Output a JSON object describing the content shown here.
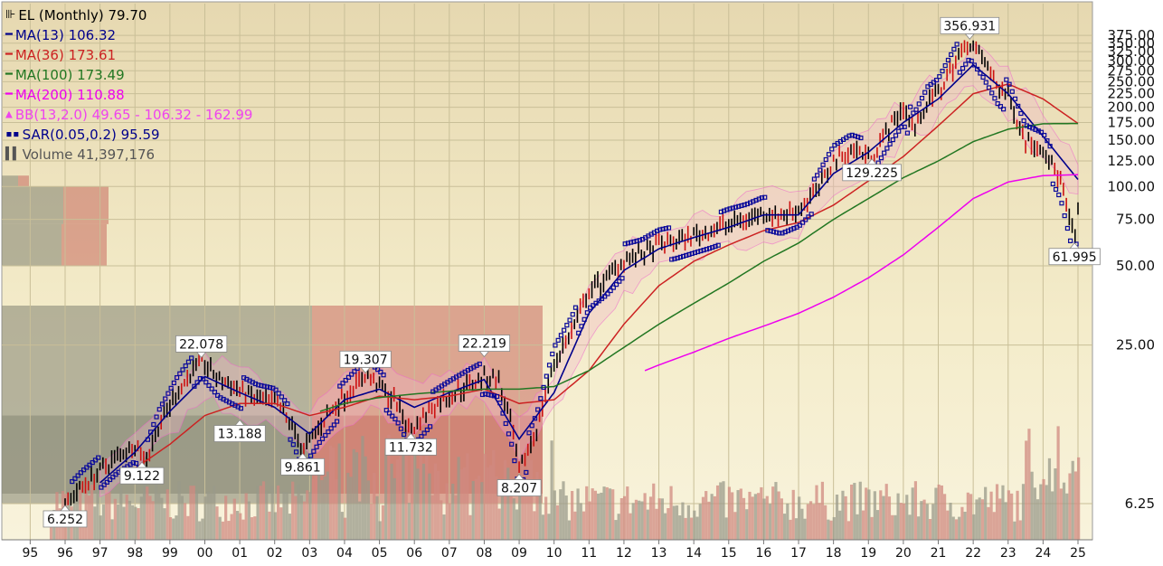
{
  "chart_data": {
    "type": "line",
    "title": "EL (Monthly) 79.70",
    "symbol": "EL",
    "period": "Monthly",
    "last_close": 79.7,
    "y_scale": "log",
    "ylim": [
      5.5,
      380
    ],
    "y_ticks": [
      375,
      350,
      325,
      300,
      275,
      250,
      225,
      200,
      175,
      150,
      125,
      100,
      75,
      50,
      25,
      6.25
    ],
    "y_tick_labels": [
      "375.00",
      "350.00",
      "325.00",
      "300.00",
      "275.00",
      "250.00",
      "225.00",
      "200.00",
      "175.00",
      "150.00",
      "125.00",
      "100.00",
      "75.00",
      "50.00",
      "25.00",
      "6.25"
    ],
    "x_labels": [
      "95",
      "96",
      "97",
      "98",
      "99",
      "00",
      "01",
      "02",
      "03",
      "04",
      "05",
      "06",
      "07",
      "08",
      "09",
      "10",
      "11",
      "12",
      "13",
      "14",
      "15",
      "16",
      "17",
      "18",
      "19",
      "20",
      "21",
      "22",
      "23",
      "24",
      "25"
    ],
    "x_years": [
      1995,
      1996,
      1997,
      1998,
      1999,
      2000,
      2001,
      2002,
      2003,
      2004,
      2005,
      2006,
      2007,
      2008,
      2009,
      2010,
      2011,
      2012,
      2013,
      2014,
      2015,
      2016,
      2017,
      2018,
      2019,
      2020,
      2021,
      2022,
      2023,
      2024,
      2025
    ],
    "grid": true,
    "legend_position": "top-left",
    "legend": [
      {
        "label": "EL (Monthly) 79.70",
        "color": "#000000",
        "icon": "candlestick-icon"
      },
      {
        "label": "MA(13) 106.32",
        "color": "#00008b",
        "icon": "line-icon"
      },
      {
        "label": "MA(36) 173.61",
        "color": "#cc2222",
        "icon": "line-icon"
      },
      {
        "label": "MA(100) 173.49",
        "color": "#227722",
        "icon": "line-icon"
      },
      {
        "label": "MA(200) 110.88",
        "color": "#ee00ee",
        "icon": "line-icon"
      },
      {
        "label": "BB(13,2.0) 49.65 - 106.32 - 162.99",
        "color": "#ee44ee",
        "icon": "bollinger-icon"
      },
      {
        "label": "SAR(0.05,0.2) 95.59",
        "color": "#00008b",
        "icon": "dots-icon"
      },
      {
        "label": "Volume 41,397,176",
        "color": "#555555",
        "icon": "volume-icon"
      }
    ],
    "annotations": [
      {
        "text": "6.252",
        "x": 1996.0,
        "y": 6.252,
        "pos": "below"
      },
      {
        "text": "9.122",
        "x": 1998.2,
        "y": 9.122,
        "pos": "below"
      },
      {
        "text": "22.078",
        "x": 1999.9,
        "y": 22.078,
        "pos": "above"
      },
      {
        "text": "13.188",
        "x": 2001.0,
        "y": 13.188,
        "pos": "below"
      },
      {
        "text": "9.861",
        "x": 2002.8,
        "y": 9.861,
        "pos": "below"
      },
      {
        "text": "19.307",
        "x": 2004.6,
        "y": 19.307,
        "pos": "above"
      },
      {
        "text": "11.732",
        "x": 2005.9,
        "y": 11.732,
        "pos": "below"
      },
      {
        "text": "22.219",
        "x": 2008.0,
        "y": 22.219,
        "pos": "above"
      },
      {
        "text": "8.207",
        "x": 2009.0,
        "y": 8.207,
        "pos": "below"
      },
      {
        "text": "129.225",
        "x": 2019.1,
        "y": 129.225,
        "pos": "below"
      },
      {
        "text": "356.931",
        "x": 2021.9,
        "y": 356.931,
        "pos": "above"
      },
      {
        "text": "61.995",
        "x": 2024.9,
        "y": 61.995,
        "pos": "below"
      }
    ],
    "series": [
      {
        "name": "EL (Monthly) 79.70",
        "kind": "price",
        "color": "#000000",
        "x": [
          1996.0,
          1996.5,
          1997.0,
          1997.5,
          1998.0,
          1998.3,
          1998.7,
          1999.2,
          1999.9,
          2000.4,
          2001.0,
          2001.5,
          2002.0,
          2002.5,
          2002.8,
          2003.3,
          2003.8,
          2004.3,
          2004.6,
          2005.0,
          2005.5,
          2005.9,
          2006.5,
          2007.0,
          2007.5,
          2008.0,
          2008.4,
          2008.8,
          2009.0,
          2009.5,
          2010.0,
          2010.5,
          2011.0,
          2011.5,
          2012.0,
          2012.5,
          2013.0,
          2013.5,
          2014.0,
          2014.5,
          2015.0,
          2015.5,
          2016.0,
          2016.5,
          2017.0,
          2017.5,
          2018.0,
          2018.5,
          2019.1,
          2019.5,
          2020.0,
          2020.3,
          2020.7,
          2021.0,
          2021.5,
          2021.9,
          2022.3,
          2022.7,
          2023.0,
          2023.5,
          2024.0,
          2024.5,
          2024.9,
          2025.0
        ],
        "y": [
          6.25,
          7.3,
          8.3,
          9.5,
          10.5,
          9.1,
          12.5,
          16.5,
          22.0,
          18.5,
          16.8,
          15.5,
          15.0,
          12.5,
          9.9,
          12.5,
          15.0,
          17.5,
          19.3,
          17.5,
          15.0,
          11.8,
          14.5,
          16.0,
          17.5,
          19.0,
          18.5,
          12.0,
          8.2,
          12.0,
          21.5,
          28.0,
          40.0,
          45.0,
          53.0,
          55.0,
          60.0,
          62.0,
          65.0,
          68.0,
          72.0,
          75.0,
          80.0,
          77.0,
          82.0,
          95.0,
          125.0,
          138.0,
          130.0,
          160.0,
          200.0,
          165.0,
          210.0,
          225.0,
          300.0,
          356.0,
          300.0,
          240.0,
          220.0,
          150.0,
          140.0,
          105.0,
          62.0,
          79.7
        ]
      },
      {
        "name": "MA(13) 106.32",
        "kind": "ma",
        "color": "#00008b",
        "x": [
          1997.0,
          1998.0,
          1999.0,
          2000.0,
          2001.0,
          2002.0,
          2003.0,
          2004.0,
          2005.0,
          2006.0,
          2007.0,
          2008.0,
          2009.0,
          2010.0,
          2011.0,
          2012.0,
          2013.0,
          2014.0,
          2015.0,
          2016.0,
          2017.0,
          2018.0,
          2019.0,
          2020.0,
          2021.0,
          2022.0,
          2023.0,
          2024.0,
          2025.0
        ],
        "y": [
          7.5,
          9.8,
          14.0,
          19.0,
          16.5,
          14.5,
          11.5,
          15.5,
          17.0,
          14.5,
          16.5,
          18.5,
          11.0,
          16.5,
          33.0,
          48.0,
          58.0,
          64.0,
          70.0,
          78.0,
          78.0,
          112.0,
          135.0,
          175.0,
          215.0,
          290.0,
          225.0,
          155.0,
          106.3
        ]
      },
      {
        "name": "MA(36) 173.61",
        "kind": "ma",
        "color": "#cc2222",
        "x": [
          1998.0,
          1999.0,
          2000.0,
          2001.0,
          2002.0,
          2003.0,
          2004.0,
          2005.0,
          2006.0,
          2007.0,
          2008.0,
          2009.0,
          2010.0,
          2011.0,
          2012.0,
          2013.0,
          2014.0,
          2015.0,
          2016.0,
          2017.0,
          2018.0,
          2019.0,
          2020.0,
          2021.0,
          2022.0,
          2023.0,
          2024.0,
          2025.0
        ],
        "y": [
          8.5,
          10.5,
          13.5,
          15.0,
          15.0,
          13.5,
          14.5,
          16.0,
          15.5,
          16.0,
          17.0,
          15.0,
          15.5,
          20.0,
          30.0,
          42.0,
          52.0,
          60.0,
          68.0,
          73.0,
          85.0,
          105.0,
          130.0,
          170.0,
          225.0,
          245.0,
          215.0,
          173.6
        ]
      },
      {
        "name": "MA(100) 173.49",
        "kind": "ma",
        "color": "#227722",
        "x": [
          2003.3,
          2004.0,
          2005.0,
          2006.0,
          2007.0,
          2008.0,
          2009.0,
          2010.0,
          2011.0,
          2012.0,
          2013.0,
          2014.0,
          2015.0,
          2016.0,
          2017.0,
          2018.0,
          2019.0,
          2020.0,
          2021.0,
          2022.0,
          2023.0,
          2024.0,
          2025.0
        ],
        "y": [
          14.0,
          15.0,
          15.8,
          16.3,
          16.7,
          17.0,
          17.0,
          17.4,
          20.0,
          24.5,
          30.0,
          36.0,
          43.0,
          52.0,
          61.0,
          75.0,
          90.0,
          108.0,
          125.0,
          148.0,
          165.0,
          173.0,
          173.5
        ]
      },
      {
        "name": "MA(200) 110.88",
        "kind": "ma",
        "color": "#ee00ee",
        "x": [
          2012.6,
          2013.0,
          2014.0,
          2015.0,
          2016.0,
          2017.0,
          2018.0,
          2019.0,
          2020.0,
          2021.0,
          2022.0,
          2023.0,
          2024.0,
          2025.0
        ],
        "y": [
          20.0,
          21.0,
          23.5,
          26.5,
          29.5,
          33.0,
          38.0,
          45.0,
          55.0,
          70.0,
          90.0,
          104.0,
          110.0,
          110.9
        ]
      }
    ],
    "volume_opacity": 0.55
  }
}
